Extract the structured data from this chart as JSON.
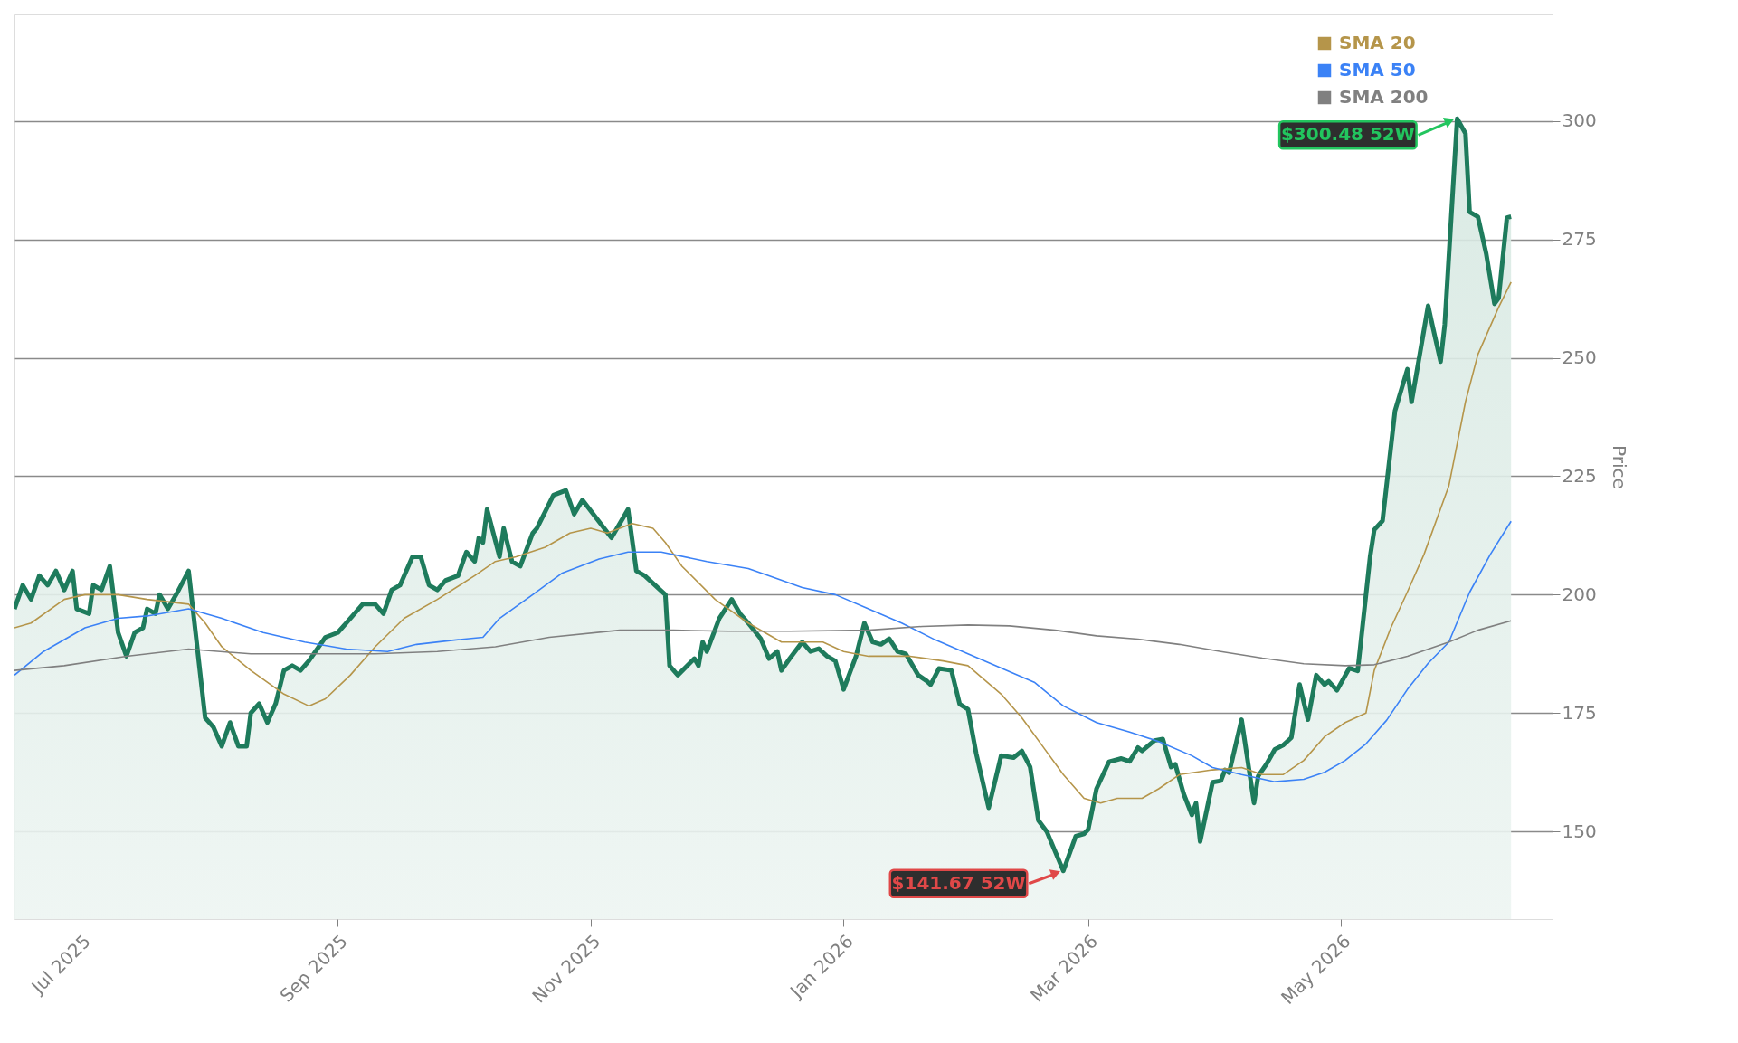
{
  "chart_data": {
    "type": "line",
    "ylabel": "Price",
    "xlim": [
      "2025-06-15",
      "2026-06-21"
    ],
    "ylim": [
      131.5,
      322.5
    ],
    "yticks": [
      150,
      175,
      200,
      225,
      250,
      275,
      300
    ],
    "xticks": [
      {
        "value": "2025-07-01",
        "label": "Jul 2025"
      },
      {
        "value": "2025-09-01",
        "label": "Sep 2025"
      },
      {
        "value": "2025-11-01",
        "label": "Nov 2025"
      },
      {
        "value": "2026-01-01",
        "label": "Jan 2026"
      },
      {
        "value": "2026-03-01",
        "label": "Mar 2026"
      },
      {
        "value": "2026-05-01",
        "label": "May 2026"
      }
    ],
    "grid": "y",
    "legend": "top right",
    "annotations": [
      {
        "text": "$300.48 52W",
        "x": "2026-05-29",
        "y": 300.48
      },
      {
        "text": "$141.67 52W",
        "x": "2026-02-23",
        "y": 141.67
      }
    ],
    "series": [
      {
        "type": "area",
        "color": "#1e7b5c",
        "x": [
          "2025-06-15",
          "2025-06-17",
          "2025-06-19",
          "2025-06-21",
          "2025-06-23",
          "2025-06-25",
          "2025-06-27",
          "2025-06-29",
          "2025-06-30",
          "2025-07-03",
          "2025-07-04",
          "2025-07-06",
          "2025-07-08",
          "2025-07-10",
          "2025-07-12",
          "2025-07-14",
          "2025-07-16",
          "2025-07-17",
          "2025-07-19",
          "2025-07-20",
          "2025-07-22",
          "2025-07-24",
          "2025-07-27",
          "2025-07-31",
          "2025-08-02",
          "2025-08-04",
          "2025-08-06",
          "2025-08-08",
          "2025-08-10",
          "2025-08-11",
          "2025-08-13",
          "2025-08-15",
          "2025-08-17",
          "2025-08-19",
          "2025-08-21",
          "2025-08-23",
          "2025-08-25",
          "2025-08-29",
          "2025-09-01",
          "2025-09-03",
          "2025-09-07",
          "2025-09-10",
          "2025-09-12",
          "2025-09-14",
          "2025-09-16",
          "2025-09-19",
          "2025-09-21",
          "2025-09-23",
          "2025-09-25",
          "2025-09-27",
          "2025-09-30",
          "2025-10-02",
          "2025-10-04",
          "2025-10-05",
          "2025-10-06",
          "2025-10-07",
          "2025-10-10",
          "2025-10-11",
          "2025-10-13",
          "2025-10-15",
          "2025-10-18",
          "2025-10-19",
          "2025-10-23",
          "2025-10-26",
          "2025-10-28",
          "2025-10-30",
          "2025-11-06",
          "2025-11-10",
          "2025-11-12",
          "2025-11-14",
          "2025-11-19",
          "2025-11-20",
          "2025-11-22",
          "2025-11-26",
          "2025-11-27",
          "2025-11-28",
          "2025-11-29",
          "2025-12-02",
          "2025-12-05",
          "2025-12-07",
          "2025-12-09",
          "2025-12-12",
          "2025-12-14",
          "2025-12-16",
          "2025-12-17",
          "2025-12-19",
          "2025-12-22",
          "2025-12-24",
          "2025-12-26",
          "2025-12-28",
          "2025-12-30",
          "2026-01-01",
          "2026-01-04",
          "2026-01-06",
          "2026-01-08",
          "2026-01-10",
          "2026-01-12",
          "2026-01-14",
          "2026-01-16",
          "2026-01-19",
          "2026-01-21",
          "2026-01-22",
          "2026-01-24",
          "2026-01-27",
          "2026-01-29",
          "2026-01-31",
          "2026-02-02",
          "2026-02-05",
          "2026-02-08",
          "2026-02-11",
          "2026-02-13",
          "2026-02-15",
          "2026-02-17",
          "2026-02-19",
          "2026-02-23",
          "2026-02-26",
          "2026-02-28",
          "2026-03-01",
          "2026-03-03",
          "2026-03-06",
          "2026-03-09",
          "2026-03-11",
          "2026-03-13",
          "2026-03-14",
          "2026-03-17",
          "2026-03-19",
          "2026-03-21",
          "2026-03-22",
          "2026-03-24",
          "2026-03-26",
          "2026-03-27",
          "2026-03-28",
          "2026-03-31",
          "2026-04-02",
          "2026-04-03",
          "2026-04-04",
          "2026-04-07",
          "2026-04-10",
          "2026-04-11",
          "2026-04-13",
          "2026-04-15",
          "2026-04-17",
          "2026-04-19",
          "2026-04-21",
          "2026-04-23",
          "2026-04-25",
          "2026-04-27",
          "2026-04-28",
          "2026-04-30",
          "2026-05-03",
          "2026-05-05",
          "2026-05-08",
          "2026-05-09",
          "2026-05-11",
          "2026-05-14",
          "2026-05-17",
          "2026-05-18",
          "2026-05-22",
          "2026-05-23",
          "2026-05-25",
          "2026-05-26",
          "2026-05-29",
          "2026-05-31",
          "2026-06-01",
          "2026-06-03",
          "2026-06-05",
          "2026-06-07",
          "2026-06-08",
          "2026-06-10",
          "2026-06-11"
        ],
        "values": [
          197,
          202,
          199,
          204,
          202,
          205,
          201,
          205,
          197,
          196,
          202,
          201,
          206,
          192,
          187,
          192,
          193,
          197,
          196,
          200,
          197,
          200,
          205,
          174,
          172,
          168,
          173,
          168,
          168,
          175,
          177,
          173,
          177,
          184,
          185,
          184,
          186,
          191,
          192,
          194,
          198,
          198,
          196,
          201,
          202,
          208,
          208,
          202,
          201,
          203,
          204,
          209,
          207,
          212,
          211,
          218,
          208,
          214,
          207,
          206,
          213,
          214,
          221,
          222,
          217,
          220,
          212,
          218,
          205,
          204,
          200,
          185,
          183,
          186.5,
          185,
          190,
          188,
          195,
          199,
          196,
          194,
          190.7,
          186.5,
          188,
          184,
          186.5,
          190,
          188,
          188.6,
          187,
          186,
          180,
          187,
          194,
          190,
          189.5,
          190.7,
          188,
          187.5,
          183,
          181.8,
          181,
          184.4,
          184,
          176.9,
          175.8,
          166.4,
          155,
          166,
          165.6,
          167,
          163.6,
          152.3,
          150,
          141.67,
          149,
          149.5,
          150.4,
          159,
          164.7,
          165.4,
          164.8,
          167.7,
          167,
          169.2,
          169.5,
          163.6,
          164.2,
          158,
          153.5,
          156,
          147.9,
          160.4,
          160.7,
          163,
          162.4,
          173.6,
          156,
          161.7,
          164.2,
          167.3,
          168.2,
          169.8,
          181,
          173.6,
          183,
          181,
          181.7,
          179.8,
          184.5,
          183.9,
          208,
          213.7,
          215.6,
          238.8,
          247.6,
          240.7,
          261,
          257,
          249.2,
          257,
          300.48,
          297.4,
          280.8,
          279.8,
          272,
          261.4,
          262.6,
          279.6,
          279.8
        ]
      },
      {
        "name": "SMA 20",
        "color": "#b5954a",
        "x": [
          "2025-06-15",
          "2025-06-19",
          "2025-06-27",
          "2025-07-02",
          "2025-07-10",
          "2025-07-17",
          "2025-07-27",
          "2025-07-31",
          "2025-08-04",
          "2025-08-11",
          "2025-08-19",
          "2025-08-25",
          "2025-08-29",
          "2025-09-04",
          "2025-09-10",
          "2025-09-17",
          "2025-09-25",
          "2025-10-04",
          "2025-10-09",
          "2025-10-14",
          "2025-10-21",
          "2025-10-27",
          "2025-11-01",
          "2025-11-05",
          "2025-11-11",
          "2025-11-16",
          "2025-11-19",
          "2025-11-23",
          "2025-12-01",
          "2025-12-09",
          "2025-12-17",
          "2025-12-22",
          "2025-12-27",
          "2026-01-01",
          "2026-01-07",
          "2026-01-12",
          "2026-01-17",
          "2026-01-25",
          "2026-01-31",
          "2026-02-04",
          "2026-02-08",
          "2026-02-13",
          "2026-02-18",
          "2026-02-23",
          "2026-02-28",
          "2026-03-04",
          "2026-03-08",
          "2026-03-14",
          "2026-03-18",
          "2026-03-23",
          "2026-03-31",
          "2026-04-07",
          "2026-04-12",
          "2026-04-17",
          "2026-04-22",
          "2026-04-27",
          "2026-05-02",
          "2026-05-07",
          "2026-05-09",
          "2026-05-13",
          "2026-05-17",
          "2026-05-21",
          "2026-05-27",
          "2026-05-31",
          "2026-06-03",
          "2026-06-08",
          "2026-06-11"
        ],
        "values": [
          193,
          194,
          199,
          200,
          200,
          199,
          198,
          194,
          189,
          184,
          179,
          176.5,
          178,
          183,
          189,
          195,
          199,
          204,
          207,
          208,
          210,
          213,
          214,
          213,
          215,
          214,
          211,
          206,
          199,
          194,
          190,
          190,
          190,
          188,
          187,
          187,
          187,
          186,
          185,
          182,
          179,
          174,
          168,
          162,
          157,
          156,
          157,
          157,
          159,
          162,
          163,
          163.5,
          162,
          162,
          165,
          170,
          173,
          175,
          184,
          193,
          200.6,
          208.5,
          223,
          240.7,
          250.7,
          260.7,
          266
        ]
      },
      {
        "name": "SMA 50",
        "color": "#3b82f6",
        "x": [
          "2025-06-15",
          "2025-06-22",
          "2025-07-02",
          "2025-07-10",
          "2025-07-17",
          "2025-07-27",
          "2025-08-04",
          "2025-08-14",
          "2025-08-24",
          "2025-09-03",
          "2025-09-13",
          "2025-09-20",
          "2025-09-30",
          "2025-10-06",
          "2025-10-10",
          "2025-10-18",
          "2025-10-25",
          "2025-11-03",
          "2025-11-10",
          "2025-11-18",
          "2025-11-29",
          "2025-12-09",
          "2025-12-14",
          "2025-12-22",
          "2025-12-30",
          "2026-01-07",
          "2026-01-15",
          "2026-01-23",
          "2026-01-31",
          "2026-02-08",
          "2026-02-16",
          "2026-02-23",
          "2026-03-03",
          "2026-03-11",
          "2026-03-18",
          "2026-03-26",
          "2026-03-31",
          "2026-04-07",
          "2026-04-15",
          "2026-04-22",
          "2026-04-27",
          "2026-05-02",
          "2026-05-07",
          "2026-05-12",
          "2026-05-17",
          "2026-05-22",
          "2026-05-27",
          "2026-06-01",
          "2026-06-06",
          "2026-06-11"
        ],
        "values": [
          183,
          188,
          193,
          195,
          195.5,
          197,
          195,
          192,
          190,
          188.5,
          188,
          189.5,
          190.5,
          191,
          195,
          200,
          204.5,
          207.5,
          209,
          209,
          207,
          205.5,
          204,
          201.5,
          200,
          197,
          194,
          190.5,
          187.5,
          184.5,
          181.5,
          176.5,
          173,
          171,
          169,
          166,
          163.5,
          162,
          160.5,
          161,
          162.5,
          165,
          168.5,
          173.5,
          180,
          185.5,
          190,
          200.5,
          208.5,
          215.5
        ]
      },
      {
        "name": "SMA 200",
        "color": "#808080",
        "x": [
          "2025-06-15",
          "2025-06-27",
          "2025-07-12",
          "2025-07-27",
          "2025-08-11",
          "2025-08-26",
          "2025-09-10",
          "2025-09-25",
          "2025-10-09",
          "2025-10-22",
          "2025-11-08",
          "2025-11-21",
          "2025-12-04",
          "2025-12-19",
          "2026-01-07",
          "2026-01-20",
          "2026-01-31",
          "2026-02-10",
          "2026-02-21",
          "2026-03-03",
          "2026-03-13",
          "2026-03-23",
          "2026-04-02",
          "2026-04-12",
          "2026-04-22",
          "2026-05-02",
          "2026-05-09",
          "2026-05-17",
          "2026-05-27",
          "2026-06-03",
          "2026-06-11"
        ],
        "values": [
          184,
          185,
          187,
          188.5,
          187.5,
          187.5,
          187.5,
          188,
          189,
          191,
          192.5,
          192.5,
          192.3,
          192.3,
          192.5,
          193.3,
          193.6,
          193.4,
          192.5,
          191.3,
          190.6,
          189.5,
          188,
          186.6,
          185.4,
          185,
          185.2,
          187,
          190,
          192.5,
          194.5
        ]
      }
    ]
  }
}
